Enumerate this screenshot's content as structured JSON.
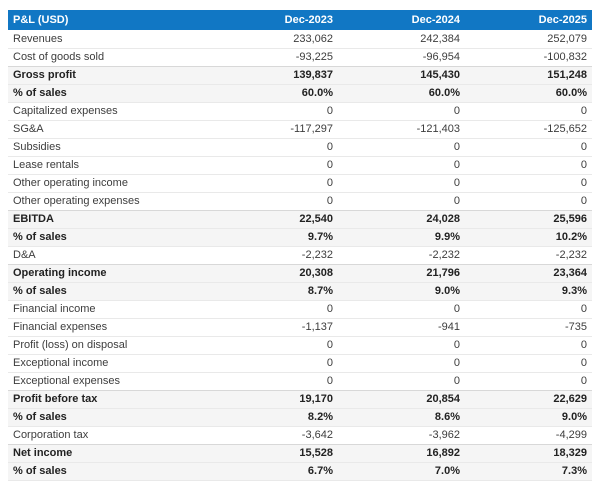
{
  "colors": {
    "header_bg": "#1177c4",
    "header_text": "#ffffff",
    "stripe_bg": "#f5f5f5",
    "border": "#e9e9e9",
    "sect_border": "#d8d8d8",
    "text": "#3d3d3d",
    "emph_text": "#222222",
    "page_bg": "#ffffff"
  },
  "chart_data": {
    "type": "table",
    "title": "P&L (USD)",
    "columns": [
      "P&L (USD)",
      "Dec-2023",
      "Dec-2024",
      "Dec-2025"
    ],
    "rows": [
      {
        "label": "Revenues",
        "values": [
          "233,062",
          "242,384",
          "252,079"
        ],
        "emphasis": false
      },
      {
        "label": "Cost of goods sold",
        "values": [
          "-93,225",
          "-96,954",
          "-100,832"
        ],
        "emphasis": false
      },
      {
        "label": "Gross profit",
        "values": [
          "139,837",
          "145,430",
          "151,248"
        ],
        "emphasis": true
      },
      {
        "label": "% of sales",
        "values": [
          "60.0%",
          "60.0%",
          "60.0%"
        ],
        "emphasis": true
      },
      {
        "label": "Capitalized expenses",
        "values": [
          "0",
          "0",
          "0"
        ],
        "emphasis": false
      },
      {
        "label": "SG&A",
        "values": [
          "-117,297",
          "-121,403",
          "-125,652"
        ],
        "emphasis": false
      },
      {
        "label": "Subsidies",
        "values": [
          "0",
          "0",
          "0"
        ],
        "emphasis": false
      },
      {
        "label": "Lease rentals",
        "values": [
          "0",
          "0",
          "0"
        ],
        "emphasis": false
      },
      {
        "label": "Other operating income",
        "values": [
          "0",
          "0",
          "0"
        ],
        "emphasis": false
      },
      {
        "label": "Other operating expenses",
        "values": [
          "0",
          "0",
          "0"
        ],
        "emphasis": false
      },
      {
        "label": "EBITDA",
        "values": [
          "22,540",
          "24,028",
          "25,596"
        ],
        "emphasis": true
      },
      {
        "label": "% of sales",
        "values": [
          "9.7%",
          "9.9%",
          "10.2%"
        ],
        "emphasis": true
      },
      {
        "label": "D&A",
        "values": [
          "-2,232",
          "-2,232",
          "-2,232"
        ],
        "emphasis": false
      },
      {
        "label": "Operating income",
        "values": [
          "20,308",
          "21,796",
          "23,364"
        ],
        "emphasis": true
      },
      {
        "label": "% of sales",
        "values": [
          "8.7%",
          "9.0%",
          "9.3%"
        ],
        "emphasis": true
      },
      {
        "label": "Financial income",
        "values": [
          "0",
          "0",
          "0"
        ],
        "emphasis": false
      },
      {
        "label": "Financial expenses",
        "values": [
          "-1,137",
          "-941",
          "-735"
        ],
        "emphasis": false
      },
      {
        "label": "Profit (loss) on disposal",
        "values": [
          "0",
          "0",
          "0"
        ],
        "emphasis": false
      },
      {
        "label": "Exceptional income",
        "values": [
          "0",
          "0",
          "0"
        ],
        "emphasis": false
      },
      {
        "label": "Exceptional expenses",
        "values": [
          "0",
          "0",
          "0"
        ],
        "emphasis": false
      },
      {
        "label": "Profit before tax",
        "values": [
          "19,170",
          "20,854",
          "22,629"
        ],
        "emphasis": true
      },
      {
        "label": "% of sales",
        "values": [
          "8.2%",
          "8.6%",
          "9.0%"
        ],
        "emphasis": true
      },
      {
        "label": "Corporation tax",
        "values": [
          "-3,642",
          "-3,962",
          "-4,299"
        ],
        "emphasis": false
      },
      {
        "label": "Net income",
        "values": [
          "15,528",
          "16,892",
          "18,329"
        ],
        "emphasis": true
      },
      {
        "label": "% of sales",
        "values": [
          "6.7%",
          "7.0%",
          "7.3%"
        ],
        "emphasis": true
      }
    ]
  }
}
